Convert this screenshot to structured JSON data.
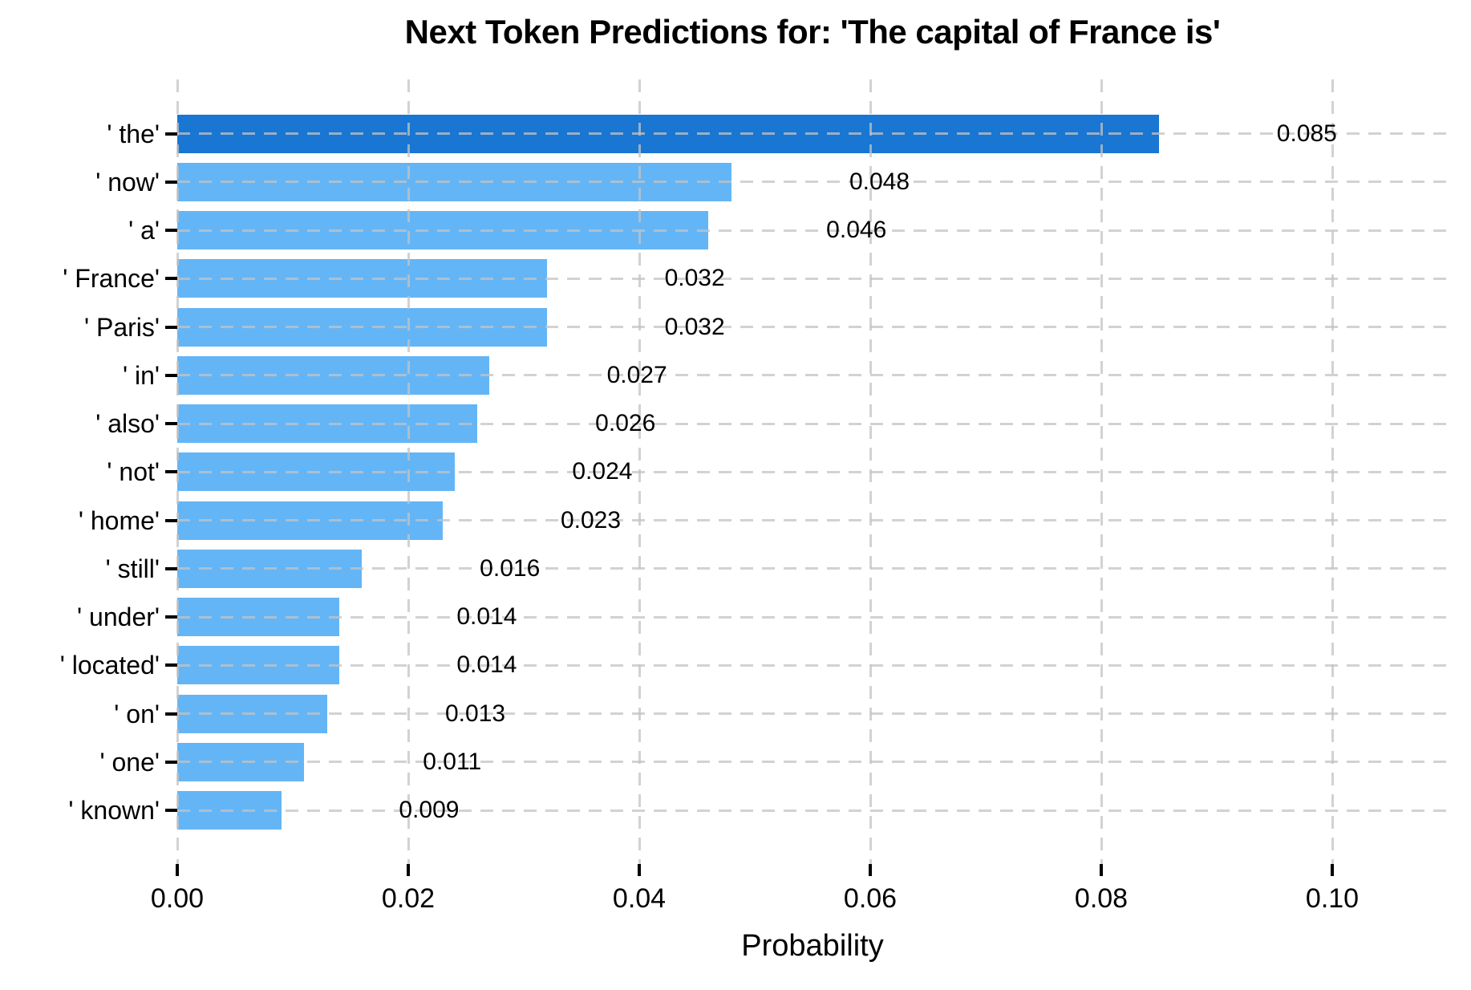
{
  "chart_data": {
    "type": "bar",
    "orientation": "horizontal",
    "title": "Next Token Predictions for: 'The capital of France is'",
    "xlabel": "Probability",
    "ylabel": "",
    "categories": [
      "' the'",
      "' now'",
      "' a'",
      "' France'",
      "' Paris'",
      "' in'",
      "' also'",
      "' not'",
      "' home'",
      "' still'",
      "' under'",
      "' located'",
      "' on'",
      "' one'",
      "' known'"
    ],
    "values": [
      0.085,
      0.048,
      0.046,
      0.032,
      0.032,
      0.027,
      0.026,
      0.024,
      0.023,
      0.016,
      0.014,
      0.014,
      0.013,
      0.011,
      0.009
    ],
    "value_labels": [
      "0.085",
      "0.048",
      "0.046",
      "0.032",
      "0.032",
      "0.027",
      "0.026",
      "0.024",
      "0.023",
      "0.016",
      "0.014",
      "0.014",
      "0.013",
      "0.011",
      "0.009"
    ],
    "x_ticks": [
      0.0,
      0.02,
      0.04,
      0.06,
      0.08,
      0.1
    ],
    "x_tick_labels": [
      "0.00",
      "0.02",
      "0.04",
      "0.06",
      "0.08",
      "0.10"
    ],
    "xlim": [
      0,
      0.11
    ],
    "grid": true,
    "grid_style": "dashed",
    "legend": "none",
    "colors": {
      "highlight_bar": "#1976D2",
      "default_bar": "#64B5F6",
      "gridline": "#c3c3c3",
      "text": "#000000",
      "background": "#ffffff"
    },
    "highlight_index": 0
  }
}
